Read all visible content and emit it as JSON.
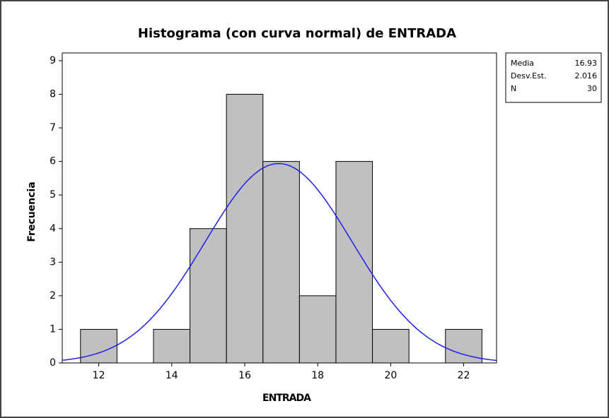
{
  "chart_data": {
    "type": "histogram",
    "title": "Histograma (con curva normal) de ENTRADA",
    "xlabel": "ENTRADA",
    "ylabel": "Frecuencia",
    "bins": [
      11.5,
      12.5,
      13.5,
      14.5,
      15.5,
      16.5,
      17.5,
      18.5,
      19.5,
      20.5,
      21.5,
      22.5
    ],
    "values": [
      1,
      0,
      1,
      4,
      8,
      6,
      2,
      6,
      1,
      0,
      1
    ],
    "color": "#c0c0c0",
    "curve_color": "#1f1fe6",
    "xlim": [
      11.0,
      22.9
    ],
    "xticks": [
      12,
      14,
      16,
      18,
      20,
      22
    ],
    "ylim": [
      0,
      9.23
    ],
    "yticks": [
      0,
      1,
      2,
      3,
      4,
      5,
      6,
      7,
      8,
      9
    ],
    "stats": [
      {
        "label": "Media",
        "value": 16.93
      },
      {
        "label": "Desv.Est.",
        "value": 2.016
      },
      {
        "label": "N",
        "value": 30
      }
    ]
  }
}
